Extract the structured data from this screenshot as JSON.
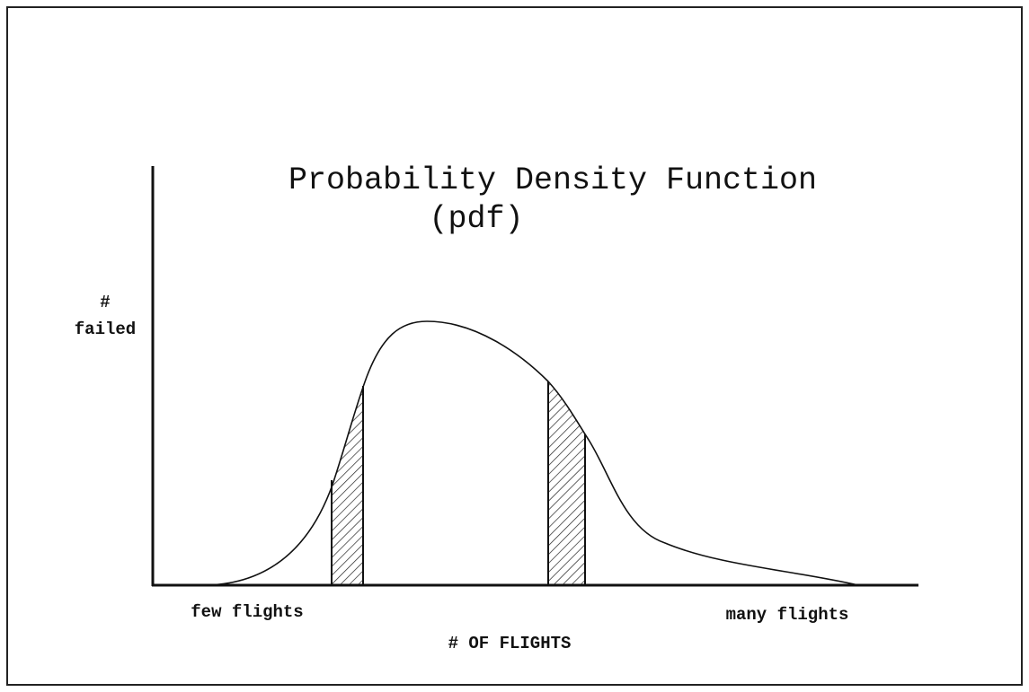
{
  "title": "Probability Density Function",
  "subtitle": "(pdf)",
  "y_label": [
    "#",
    "failed"
  ],
  "x_label": "# OF FLIGHTS",
  "x_left_label": "few flights",
  "x_right_label": "many flights"
}
